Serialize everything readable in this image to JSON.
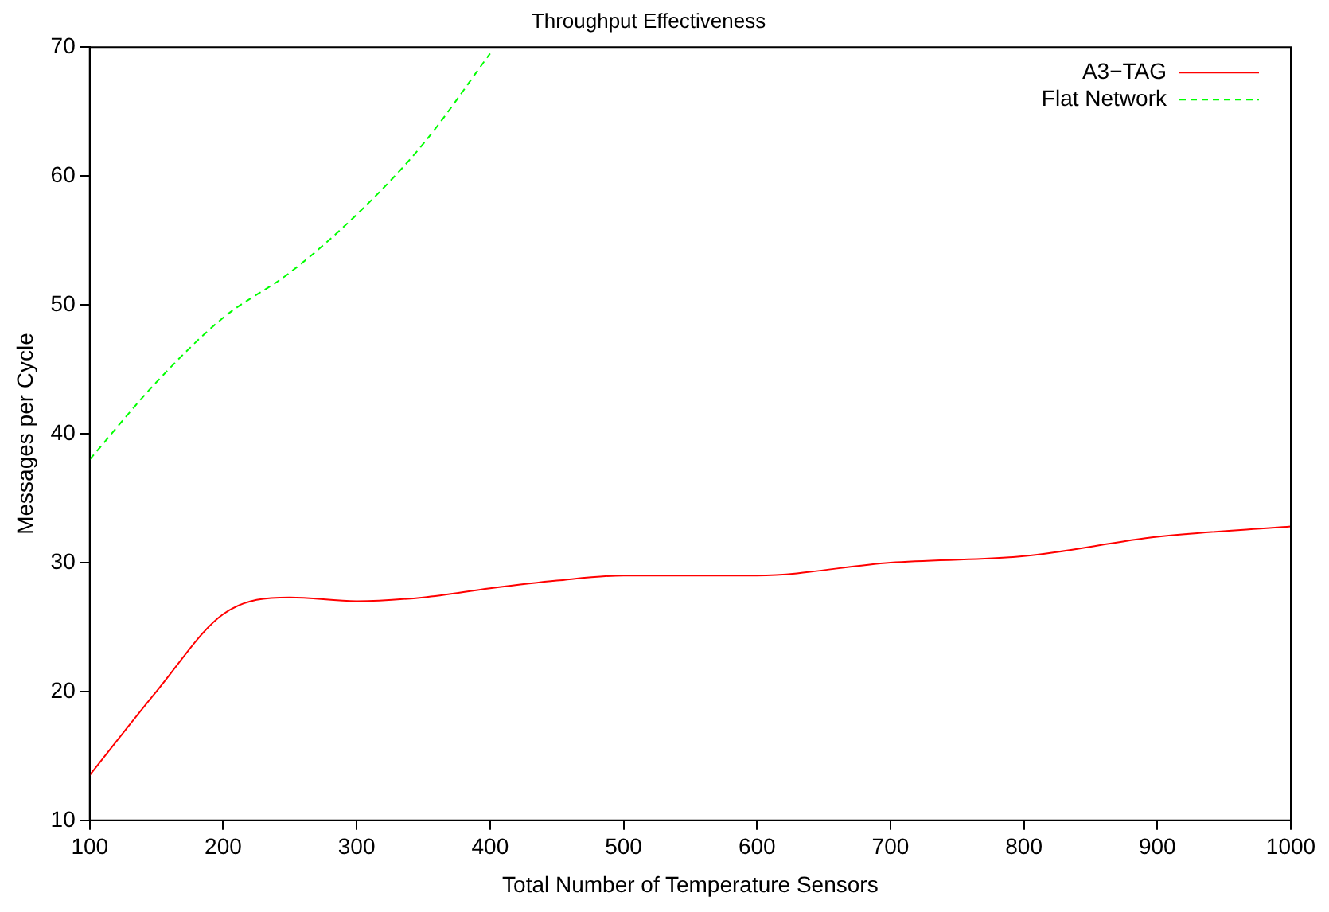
{
  "chart_data": {
    "type": "line",
    "title": "Throughput Effectiveness",
    "xlabel": "Total Number of Temperature Sensors",
    "ylabel": "Messages per Cycle",
    "xlim": [
      100,
      1000
    ],
    "xticks": [
      100,
      200,
      300,
      400,
      500,
      600,
      700,
      800,
      900,
      1000
    ],
    "ylim": [
      10,
      70
    ],
    "yticks": [
      10,
      20,
      30,
      40,
      50,
      60,
      70
    ],
    "grid": false,
    "legend": "top right",
    "marker": "none",
    "series": [
      {
        "name": "A3−TAG",
        "color": "#ff0000",
        "line_style": "solid",
        "x": [
          100,
          150,
          200,
          250,
          300,
          350,
          400,
          450,
          500,
          600,
          700,
          800,
          900,
          1000
        ],
        "values": [
          13.5,
          20,
          26,
          27.3,
          27,
          27.3,
          28,
          28.6,
          29,
          29,
          30,
          30.5,
          32,
          32.8
        ]
      },
      {
        "name": "Flat Network",
        "color": "#00ff00",
        "line_style": "dashed",
        "x": [
          100,
          150,
          200,
          250,
          300,
          350,
          400
        ],
        "values": [
          38,
          44,
          49,
          52.5,
          57,
          62.5,
          69.5
        ]
      }
    ]
  }
}
